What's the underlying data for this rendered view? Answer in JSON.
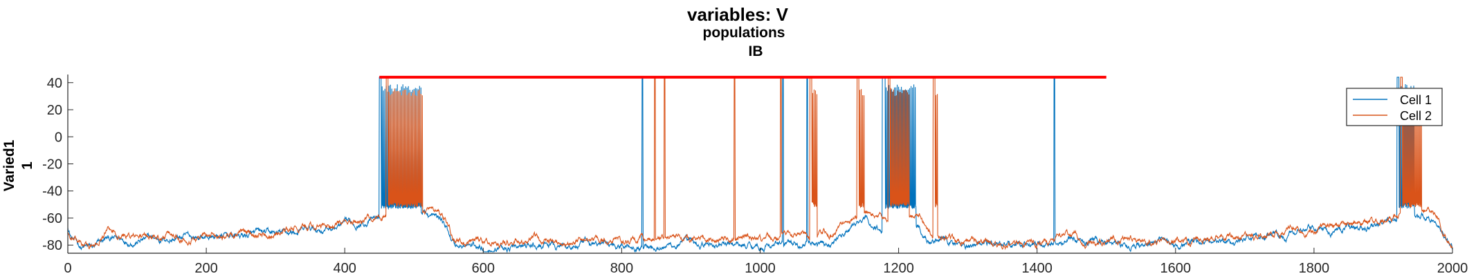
{
  "chart_data": {
    "type": "line",
    "title": "variables: V",
    "subtitle": [
      "populations",
      "IB"
    ],
    "ylabel": [
      "Varied1",
      "1"
    ],
    "xlabel": "",
    "xlim": [
      0,
      2000
    ],
    "ylim": [
      -86,
      46
    ],
    "x_ticks": [
      0,
      200,
      400,
      600,
      800,
      1000,
      1200,
      1400,
      1600,
      1800,
      2000
    ],
    "y_ticks": [
      40,
      20,
      0,
      -20,
      -40,
      -60,
      -80
    ],
    "legend_position": "top-right",
    "colors": {
      "cell1": "#0072BD",
      "cell2": "#D95319",
      "reference": "#FF0000"
    },
    "reference_line": {
      "y": 44,
      "x": [
        450,
        1500
      ]
    },
    "series": [
      {
        "name": "Cell 1",
        "baseline_points": [
          [
            0,
            -66
          ],
          [
            5,
            -74
          ],
          [
            20,
            -82
          ],
          [
            40,
            -82
          ],
          [
            55,
            -76
          ],
          [
            100,
            -76
          ],
          [
            200,
            -74
          ],
          [
            300,
            -72
          ],
          [
            400,
            -66
          ],
          [
            450,
            -60
          ],
          [
            480,
            -56
          ],
          [
            510,
            -55
          ],
          [
            540,
            -62
          ],
          [
            560,
            -80
          ],
          [
            600,
            -82
          ],
          [
            700,
            -81
          ],
          [
            800,
            -79
          ],
          [
            900,
            -80
          ],
          [
            1000,
            -80
          ],
          [
            1100,
            -79
          ],
          [
            1150,
            -62
          ],
          [
            1180,
            -70
          ],
          [
            1230,
            -66
          ],
          [
            1250,
            -76
          ],
          [
            1300,
            -80
          ],
          [
            1400,
            -79
          ],
          [
            1450,
            -76
          ],
          [
            1500,
            -78
          ],
          [
            1600,
            -79
          ],
          [
            1700,
            -76
          ],
          [
            1800,
            -69
          ],
          [
            1880,
            -67
          ],
          [
            1920,
            -62
          ],
          [
            1940,
            -57
          ],
          [
            1970,
            -58
          ],
          [
            1985,
            -70
          ],
          [
            2000,
            -84
          ]
        ],
        "burst_windows": [
          [
            450,
            510
          ],
          [
            1178,
            1225
          ],
          [
            1920,
            1945
          ]
        ],
        "spike_times": [
          830,
          1033,
          1068,
          1177,
          1220,
          1425
        ],
        "burst_plateau": [
          -53,
          33
        ]
      },
      {
        "name": "Cell 2",
        "baseline_points": [
          [
            0,
            -70
          ],
          [
            5,
            -76
          ],
          [
            20,
            -80
          ],
          [
            40,
            -82
          ],
          [
            55,
            -70
          ],
          [
            100,
            -74
          ],
          [
            200,
            -73
          ],
          [
            300,
            -70
          ],
          [
            400,
            -65
          ],
          [
            450,
            -58
          ],
          [
            480,
            -54
          ],
          [
            510,
            -54
          ],
          [
            540,
            -60
          ],
          [
            560,
            -78
          ],
          [
            600,
            -79
          ],
          [
            700,
            -77
          ],
          [
            800,
            -76
          ],
          [
            900,
            -76
          ],
          [
            1000,
            -76
          ],
          [
            1100,
            -70
          ],
          [
            1150,
            -58
          ],
          [
            1180,
            -62
          ],
          [
            1230,
            -60
          ],
          [
            1250,
            -72
          ],
          [
            1300,
            -78
          ],
          [
            1400,
            -78
          ],
          [
            1450,
            -75
          ],
          [
            1500,
            -77
          ],
          [
            1600,
            -77
          ],
          [
            1700,
            -73
          ],
          [
            1800,
            -67
          ],
          [
            1880,
            -64
          ],
          [
            1920,
            -58
          ],
          [
            1940,
            -54
          ],
          [
            1970,
            -55
          ],
          [
            1985,
            -68
          ],
          [
            2000,
            -82
          ]
        ],
        "burst_windows": [
          [
            460,
            512
          ],
          [
            1072,
            1082
          ],
          [
            1140,
            1150
          ],
          [
            1185,
            1215
          ],
          [
            1250,
            1256
          ],
          [
            1925,
            1955
          ]
        ],
        "spike_times": [
          848,
          862,
          963,
          1030
        ],
        "burst_plateau": [
          -52,
          30
        ]
      }
    ]
  }
}
